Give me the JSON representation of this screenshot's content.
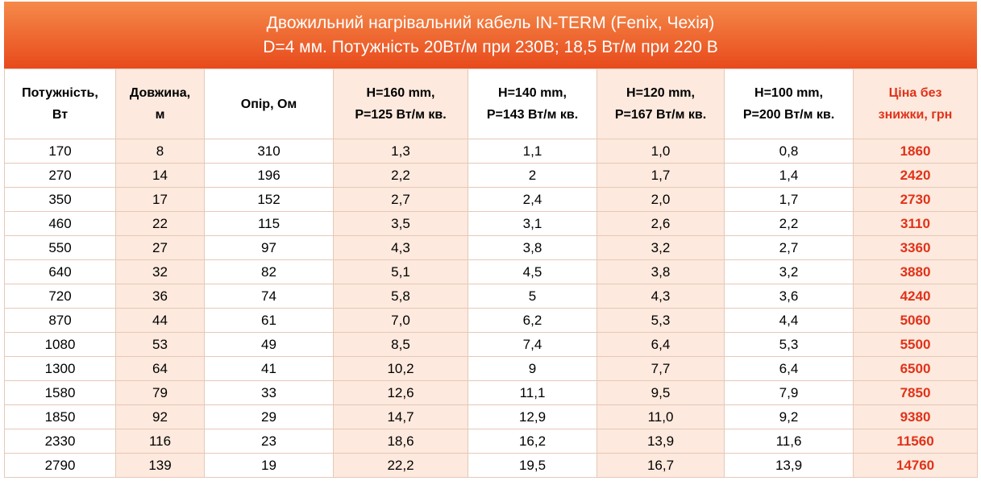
{
  "header": {
    "title": [
      "Двожильний нагрівальний кабель IN-TERM (Fenix, Чехія)",
      "D=4 мм. Потужність 20Вт/м при 230В; 18,5 Вт/м при 220 В"
    ]
  },
  "table": {
    "columns": [
      [
        "Потужність,",
        "Вт"
      ],
      [
        "Довжина,",
        "м"
      ],
      [
        "Опір, Ом"
      ],
      [
        "H=160 mm,",
        "P=125 Вт/м кв."
      ],
      [
        "H=140 mm,",
        "P=143 Вт/м кв."
      ],
      [
        "H=120 mm,",
        "P=167 Вт/м кв."
      ],
      [
        "H=100 mm,",
        "P=200 Вт/м кв."
      ],
      [
        "Ціна без",
        "знижки, грн"
      ]
    ],
    "rows": [
      [
        "170",
        "8",
        "310",
        "1,3",
        "1,1",
        "1,0",
        "0,8",
        "1860"
      ],
      [
        "270",
        "14",
        "196",
        "2,2",
        "2",
        "1,7",
        "1,4",
        "2420"
      ],
      [
        "350",
        "17",
        "152",
        "2,7",
        "2,4",
        "2,0",
        "1,7",
        "2730"
      ],
      [
        "460",
        "22",
        "115",
        "3,5",
        "3,1",
        "2,6",
        "2,2",
        "3110"
      ],
      [
        "550",
        "27",
        "97",
        "4,3",
        "3,8",
        "3,2",
        "2,7",
        "3360"
      ],
      [
        "640",
        "32",
        "82",
        "5,1",
        "4,5",
        "3,8",
        "3,2",
        "3880"
      ],
      [
        "720",
        "36",
        "74",
        "5,8",
        "5",
        "4,3",
        "3,6",
        "4240"
      ],
      [
        "870",
        "44",
        "61",
        "7,0",
        "6,2",
        "5,3",
        "4,4",
        "5060"
      ],
      [
        "1080",
        "53",
        "49",
        "8,5",
        "7,4",
        "6,4",
        "5,3",
        "5500"
      ],
      [
        "1300",
        "64",
        "41",
        "10,2",
        "9",
        "7,7",
        "6,4",
        "6500"
      ],
      [
        "1580",
        "79",
        "33",
        "12,6",
        "11,1",
        "9,5",
        "7,9",
        "7850"
      ],
      [
        "1850",
        "92",
        "29",
        "14,7",
        "12,9",
        "11,0",
        "9,2",
        "9380"
      ],
      [
        "2330",
        "116",
        "23",
        "18,6",
        "16,2",
        "13,9",
        "11,6",
        "11560"
      ],
      [
        "2790",
        "139",
        "19",
        "22,2",
        "19,5",
        "16,7",
        "13,9",
        "14760"
      ]
    ]
  }
}
